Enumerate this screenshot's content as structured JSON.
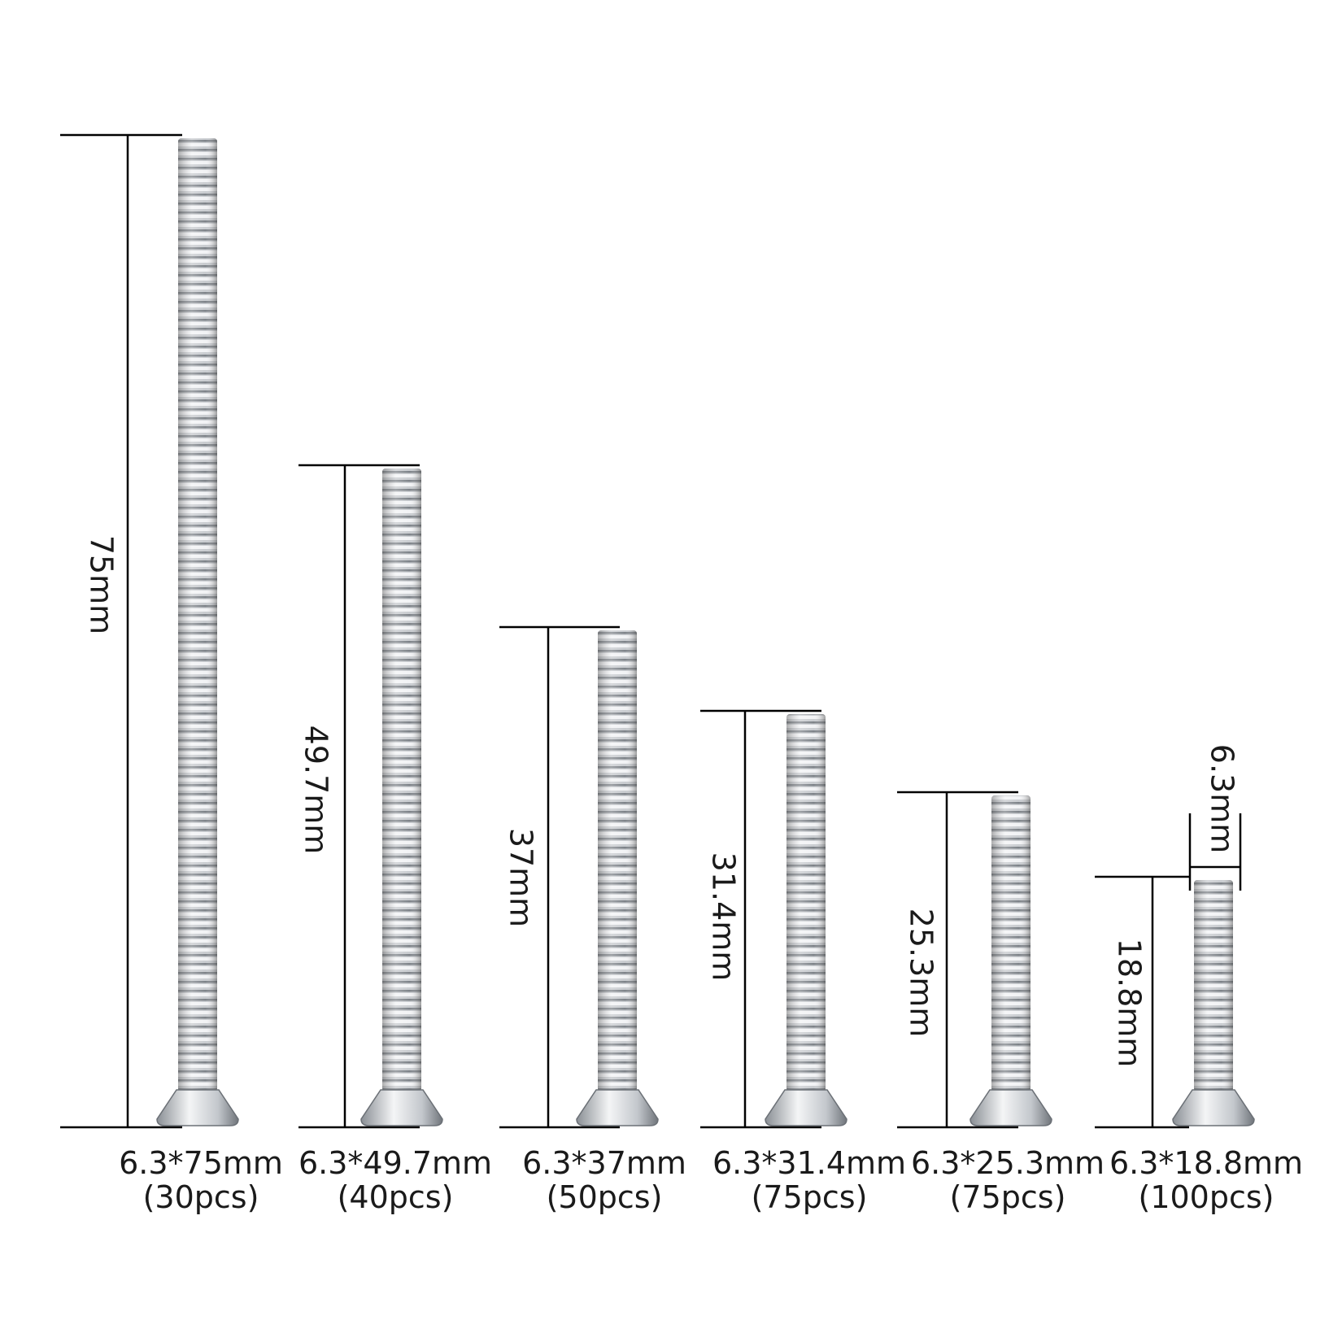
{
  "screws": [
    {
      "length": "75mm",
      "size": "6.3*75mm",
      "count": "(30pcs)"
    },
    {
      "length": "49.7mm",
      "size": "6.3*49.7mm",
      "count": "(40pcs)"
    },
    {
      "length": "37mm",
      "size": "6.3*37mm",
      "count": "(50pcs)"
    },
    {
      "length": "31.4mm",
      "size": "6.3*31.4mm",
      "count": "(75pcs)"
    },
    {
      "length": "25.3mm",
      "size": "6.3*25.3mm",
      "count": "(75pcs)"
    },
    {
      "length": "18.8mm",
      "size": "6.3*18.8mm",
      "count": "(100pcs)"
    }
  ],
  "diameter": "6.3mm"
}
